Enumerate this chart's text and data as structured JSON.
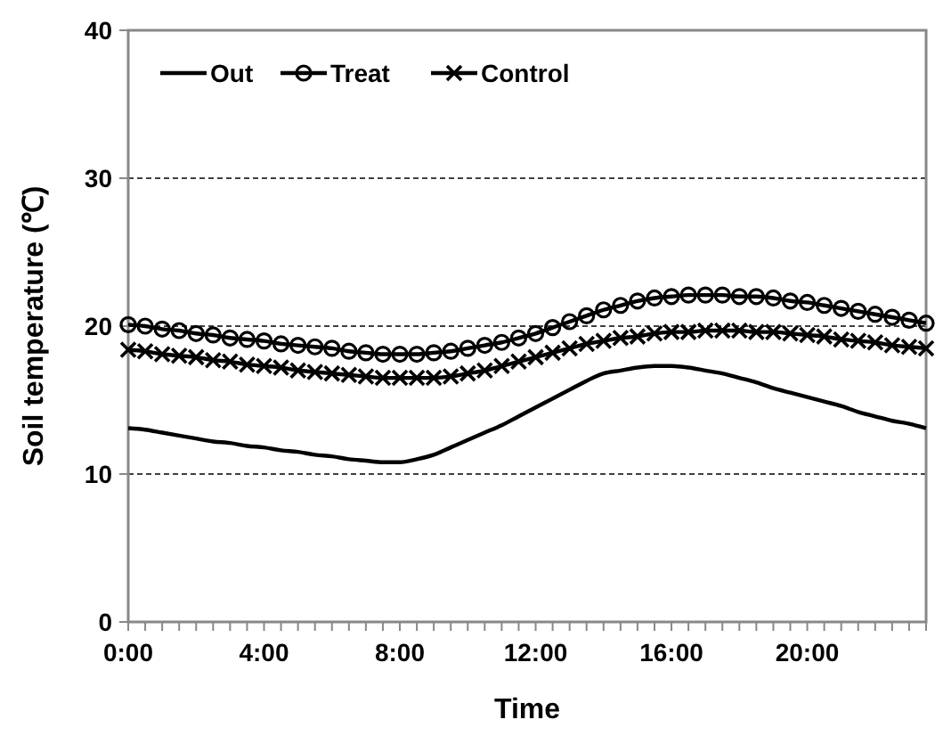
{
  "chart_data": {
    "type": "line",
    "xlabel": "Time",
    "ylabel": "Soil temperature (℃)",
    "x": [
      0,
      0.5,
      1,
      1.5,
      2,
      2.5,
      3,
      3.5,
      4,
      4.5,
      5,
      5.5,
      6,
      6.5,
      7,
      7.5,
      8,
      8.5,
      9,
      9.5,
      10,
      10.5,
      11,
      11.5,
      12,
      12.5,
      13,
      13.5,
      14,
      14.5,
      15,
      15.5,
      16,
      16.5,
      17,
      17.5,
      18,
      18.5,
      19,
      19.5,
      20,
      20.5,
      21,
      21.5,
      22,
      22.5,
      23,
      23.5
    ],
    "series": [
      {
        "name": "Out",
        "color": "#000000",
        "marker": "none",
        "values": [
          13.1,
          13.0,
          12.8,
          12.6,
          12.4,
          12.2,
          12.1,
          11.9,
          11.8,
          11.6,
          11.5,
          11.3,
          11.2,
          11.0,
          10.9,
          10.8,
          10.8,
          11.0,
          11.3,
          11.8,
          12.3,
          12.8,
          13.3,
          13.9,
          14.5,
          15.1,
          15.7,
          16.3,
          16.8,
          17.0,
          17.2,
          17.3,
          17.3,
          17.2,
          17.0,
          16.8,
          16.5,
          16.2,
          15.8,
          15.5,
          15.2,
          14.9,
          14.6,
          14.2,
          13.9,
          13.6,
          13.4,
          13.1
        ]
      },
      {
        "name": "Treat",
        "color": "#000000",
        "marker": "circle",
        "values": [
          20.1,
          20.0,
          19.8,
          19.7,
          19.5,
          19.4,
          19.2,
          19.1,
          19.0,
          18.8,
          18.7,
          18.6,
          18.5,
          18.3,
          18.2,
          18.1,
          18.1,
          18.1,
          18.2,
          18.3,
          18.5,
          18.7,
          18.9,
          19.2,
          19.5,
          19.9,
          20.3,
          20.7,
          21.1,
          21.4,
          21.7,
          21.9,
          22.0,
          22.1,
          22.1,
          22.1,
          22.0,
          22.0,
          21.9,
          21.7,
          21.6,
          21.4,
          21.2,
          21.0,
          20.8,
          20.6,
          20.4,
          20.2
        ]
      },
      {
        "name": "Control",
        "color": "#000000",
        "marker": "cross",
        "values": [
          18.4,
          18.3,
          18.1,
          18.0,
          17.9,
          17.7,
          17.6,
          17.4,
          17.3,
          17.2,
          17.0,
          16.9,
          16.8,
          16.7,
          16.6,
          16.5,
          16.5,
          16.5,
          16.5,
          16.6,
          16.8,
          17.0,
          17.3,
          17.6,
          17.9,
          18.2,
          18.5,
          18.8,
          19.0,
          19.2,
          19.3,
          19.5,
          19.6,
          19.6,
          19.7,
          19.7,
          19.7,
          19.6,
          19.6,
          19.5,
          19.4,
          19.3,
          19.1,
          19.0,
          18.9,
          18.7,
          18.6,
          18.5
        ]
      }
    ],
    "xlim": [
      0,
      23.5
    ],
    "xticks": [
      {
        "value": 0,
        "label": "0:00"
      },
      {
        "value": 0.5,
        "label": null
      },
      {
        "value": 1,
        "label": null
      },
      {
        "value": 1.5,
        "label": null
      },
      {
        "value": 2,
        "label": null
      },
      {
        "value": 2.5,
        "label": null
      },
      {
        "value": 3,
        "label": null
      },
      {
        "value": 3.5,
        "label": null
      },
      {
        "value": 4,
        "label": "4:00"
      },
      {
        "value": 4.5,
        "label": null
      },
      {
        "value": 5,
        "label": null
      },
      {
        "value": 5.5,
        "label": null
      },
      {
        "value": 6,
        "label": null
      },
      {
        "value": 6.5,
        "label": null
      },
      {
        "value": 7,
        "label": null
      },
      {
        "value": 7.5,
        "label": null
      },
      {
        "value": 8,
        "label": "8:00"
      },
      {
        "value": 8.5,
        "label": null
      },
      {
        "value": 9,
        "label": null
      },
      {
        "value": 9.5,
        "label": null
      },
      {
        "value": 10,
        "label": null
      },
      {
        "value": 10.5,
        "label": null
      },
      {
        "value": 11,
        "label": null
      },
      {
        "value": 11.5,
        "label": null
      },
      {
        "value": 12,
        "label": "12:00"
      },
      {
        "value": 12.5,
        "label": null
      },
      {
        "value": 13,
        "label": null
      },
      {
        "value": 13.5,
        "label": null
      },
      {
        "value": 14,
        "label": null
      },
      {
        "value": 14.5,
        "label": null
      },
      {
        "value": 15,
        "label": null
      },
      {
        "value": 15.5,
        "label": null
      },
      {
        "value": 16,
        "label": "16:00"
      },
      {
        "value": 16.5,
        "label": null
      },
      {
        "value": 17,
        "label": null
      },
      {
        "value": 17.5,
        "label": null
      },
      {
        "value": 18,
        "label": null
      },
      {
        "value": 18.5,
        "label": null
      },
      {
        "value": 19,
        "label": null
      },
      {
        "value": 19.5,
        "label": null
      },
      {
        "value": 20,
        "label": "20:00"
      },
      {
        "value": 20.5,
        "label": null
      },
      {
        "value": 21,
        "label": null
      },
      {
        "value": 21.5,
        "label": null
      },
      {
        "value": 22,
        "label": null
      },
      {
        "value": 22.5,
        "label": null
      },
      {
        "value": 23,
        "label": null
      },
      {
        "value": 23.5,
        "label": null
      }
    ],
    "ylim": [
      0,
      40
    ],
    "yticks": [
      0,
      10,
      20,
      30,
      40
    ],
    "grid": "y",
    "legend": "top left",
    "line_style": "solid"
  }
}
